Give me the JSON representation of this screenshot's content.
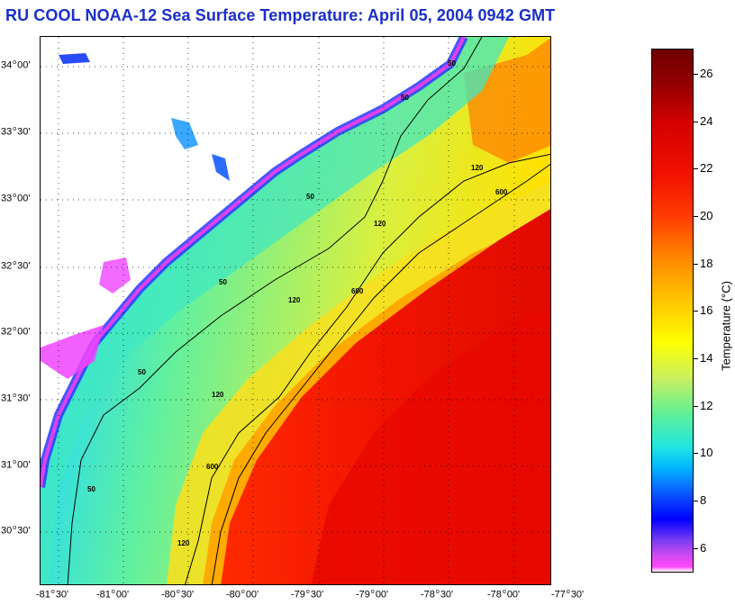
{
  "title": "RU COOL  NOAA-12  Sea Surface Temperature:  April 05, 2004 0942 GMT",
  "lat_ticks": [
    {
      "deg": "34",
      "min": "00'"
    },
    {
      "deg": "33",
      "min": "30'"
    },
    {
      "deg": "33",
      "min": "00'"
    },
    {
      "deg": "32",
      "min": "30'"
    },
    {
      "deg": "32",
      "min": "00'"
    },
    {
      "deg": "31",
      "min": "30'"
    },
    {
      "deg": "31",
      "min": "00'"
    },
    {
      "deg": "30",
      "min": "30'"
    }
  ],
  "lon_ticks": [
    {
      "deg": "-81",
      "min": "30'"
    },
    {
      "deg": "-81",
      "min": "00'"
    },
    {
      "deg": "-80",
      "min": "30'"
    },
    {
      "deg": "-80",
      "min": "00'"
    },
    {
      "deg": "-79",
      "min": "30'"
    },
    {
      "deg": "-79",
      "min": "00'"
    },
    {
      "deg": "-78",
      "min": "30'"
    },
    {
      "deg": "-78",
      "min": "00'"
    },
    {
      "deg": "-77",
      "min": "30'"
    }
  ],
  "contour_labels": [
    "50",
    "50",
    "50",
    "50",
    "50",
    "50",
    "120",
    "120",
    "120",
    "120",
    "120",
    "600",
    "600",
    "600"
  ],
  "colorbar": {
    "label": "Temperature (°C)",
    "ticks": [
      "26",
      "24",
      "22",
      "20",
      "18",
      "16",
      "14",
      "12",
      "10",
      "8",
      "6"
    ],
    "range": [
      5,
      27
    ]
  }
}
